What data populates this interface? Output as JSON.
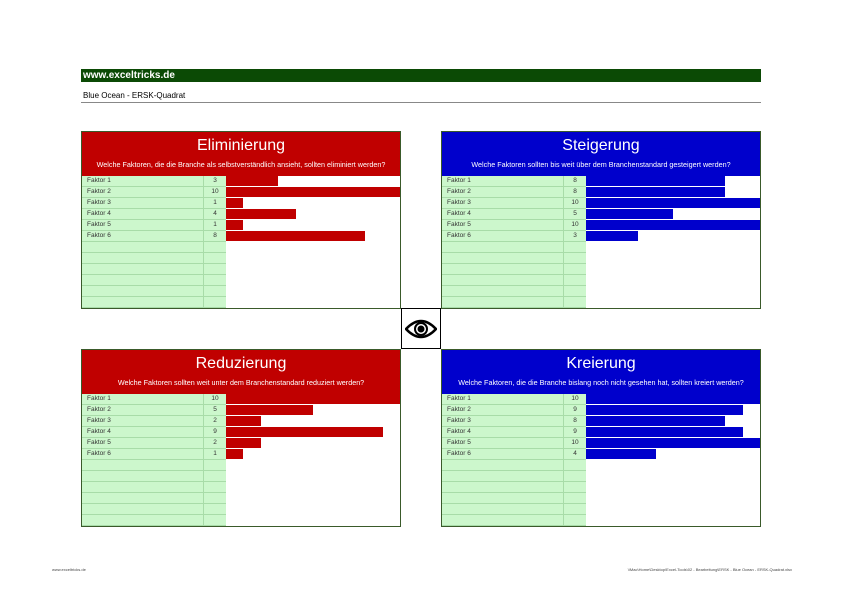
{
  "header": {
    "site": "www.exceltricks.de",
    "subtitle": "Blue Ocean - ERSK-Quadrat"
  },
  "colors": {
    "red": "#c00000",
    "blue": "#0000cc",
    "green_header": "#0b4a05",
    "row_fill": "#ccf7cc"
  },
  "max_value": 10,
  "center_icon": "eye-icon",
  "quadrants": [
    {
      "id": "eliminierung",
      "title": "Eliminierung",
      "question": "Welche Faktoren, die die Branche als selbstverständlich ansieht, sollten eliminiert werden?",
      "color": "#c00000",
      "rows": [
        {
          "label": "Faktor 1",
          "value": 3
        },
        {
          "label": "Faktor 2",
          "value": 10
        },
        {
          "label": "Faktor 3",
          "value": 1
        },
        {
          "label": "Faktor 4",
          "value": 4
        },
        {
          "label": "Faktor 5",
          "value": 1
        },
        {
          "label": "Faktor 6",
          "value": 8
        }
      ]
    },
    {
      "id": "steigerung",
      "title": "Steigerung",
      "question": "Welche Faktoren sollten bis weit über dem Branchenstandard gesteigert werden?",
      "color": "#0000cc",
      "rows": [
        {
          "label": "Faktor 1",
          "value": 8
        },
        {
          "label": "Faktor 2",
          "value": 8
        },
        {
          "label": "Faktor 3",
          "value": 10
        },
        {
          "label": "Faktor 4",
          "value": 5
        },
        {
          "label": "Faktor 5",
          "value": 10
        },
        {
          "label": "Faktor 6",
          "value": 3
        }
      ]
    },
    {
      "id": "reduzierung",
      "title": "Reduzierung",
      "question": "Welche Faktoren sollten weit unter dem Branchenstandard reduziert werden?",
      "color": "#c00000",
      "rows": [
        {
          "label": "Faktor 1",
          "value": 10
        },
        {
          "label": "Faktor 2",
          "value": 5
        },
        {
          "label": "Faktor 3",
          "value": 2
        },
        {
          "label": "Faktor 4",
          "value": 9
        },
        {
          "label": "Faktor 5",
          "value": 2
        },
        {
          "label": "Faktor 6",
          "value": 1
        }
      ]
    },
    {
      "id": "kreierung",
      "title": "Kreierung",
      "question": "Welche Faktoren, die die Branche bislang noch nicht gesehen hat, sollten kreiert werden?",
      "color": "#0000cc",
      "rows": [
        {
          "label": "Faktor 1",
          "value": 10
        },
        {
          "label": "Faktor 2",
          "value": 9
        },
        {
          "label": "Faktor 3",
          "value": 8
        },
        {
          "label": "Faktor 4",
          "value": 9
        },
        {
          "label": "Faktor 5",
          "value": 10
        },
        {
          "label": "Faktor 6",
          "value": 4
        }
      ]
    }
  ],
  "footer": {
    "left": "www.exceltricks.de",
    "right": "\\\\Mac\\Home\\Desktop\\Excel-Tools\\02 - Bearbeitung\\ERSK - Blue Ocean - ERSK-Quadrat.xlsx"
  }
}
